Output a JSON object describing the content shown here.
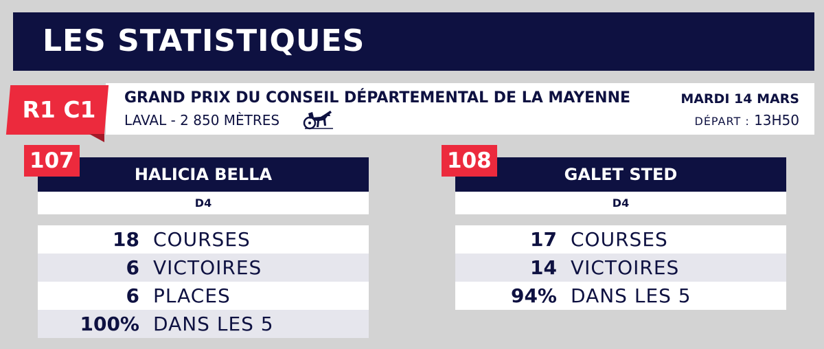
{
  "header": {
    "title": "LES STATISTIQUES"
  },
  "race": {
    "code": "R1 C1",
    "name": "GRAND PRIX DU CONSEIL DÉPARTEMENTAL DE LA MAYENNE",
    "place": "LAVAL -  2 850 MÈTRES",
    "icon": "trotting-sulky-icon",
    "date": "MARDI 14 MARS",
    "depart_label": "DÉPART :",
    "depart_time": "13H50"
  },
  "horses": [
    {
      "number": "107",
      "name": "HALICIA BELLA",
      "class": "D4",
      "stats": [
        {
          "value": "18",
          "label": "COURSES"
        },
        {
          "value": "6",
          "label": "VICTOIRES"
        },
        {
          "value": "6",
          "label": "PLACES"
        },
        {
          "value": "100%",
          "label": "DANS LES 5"
        }
      ]
    },
    {
      "number": "108",
      "name": "GALET STED",
      "class": "D4",
      "stats": [
        {
          "value": "17",
          "label": "COURSES"
        },
        {
          "value": "14",
          "label": "VICTOIRES"
        },
        {
          "value": "94%",
          "label": "DANS LES 5"
        }
      ]
    }
  ],
  "colors": {
    "navy": "#0e1141",
    "red": "#ec2a3d",
    "background": "#d3d3d3"
  }
}
